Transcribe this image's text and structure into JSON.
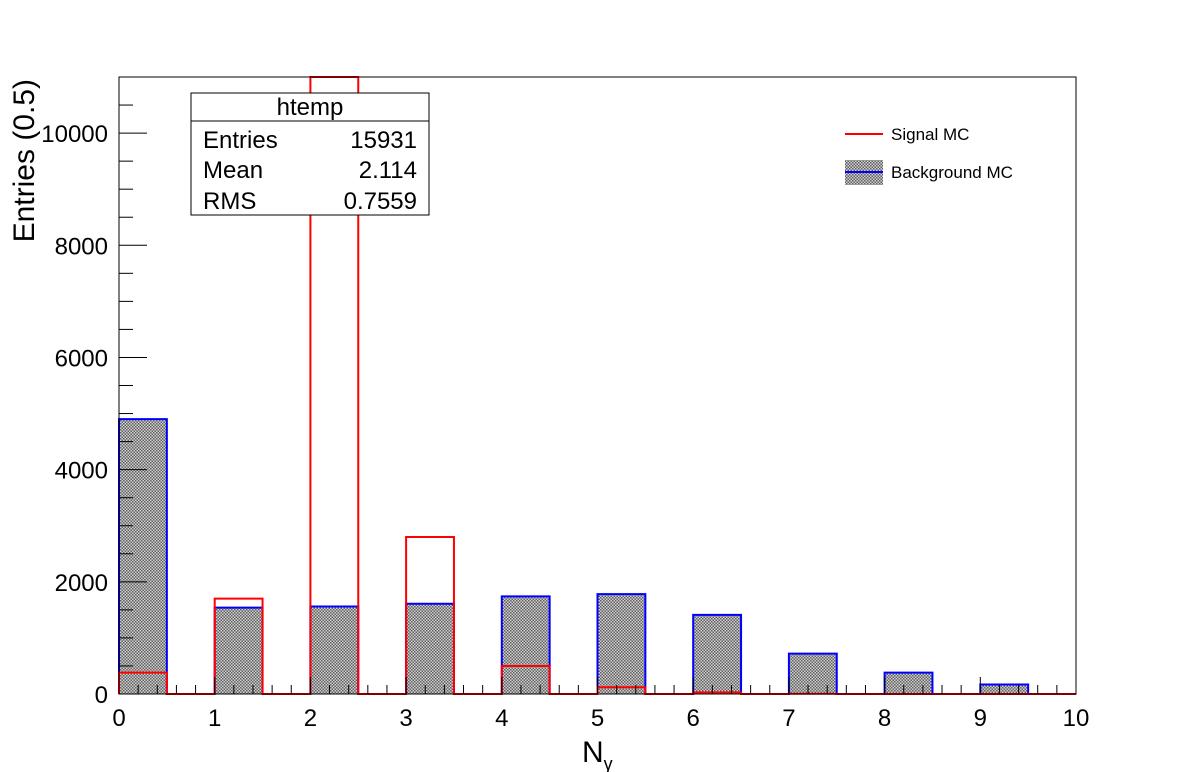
{
  "colors": {
    "signal": "#ff0000",
    "background_line": "#0000ff",
    "background_fill": "#808080",
    "axis": "#000000"
  },
  "stats_box": {
    "title": "htemp",
    "rows": [
      {
        "label": "Entries",
        "value": "15931"
      },
      {
        "label": "Mean",
        "value": "2.114"
      },
      {
        "label": "RMS",
        "value": "0.7559"
      }
    ]
  },
  "chart_data": {
    "type": "bar",
    "xlabel": "N",
    "xlabel_sub": "γ",
    "ylabel": "Entries (0.5)",
    "xlim": [
      0,
      10
    ],
    "ylim": [
      0,
      11000
    ],
    "bin_width": 0.5,
    "x_ticks": [
      0,
      1,
      2,
      3,
      4,
      5,
      6,
      7,
      8,
      9,
      10
    ],
    "y_ticks": [
      0,
      2000,
      4000,
      6000,
      8000,
      10000
    ],
    "bin_edges": [
      0,
      0.5,
      1,
      1.5,
      2,
      2.5,
      3,
      3.5,
      4,
      4.5,
      5,
      5.5,
      6,
      6.5,
      7,
      7.5,
      8,
      8.5,
      9,
      9.5,
      10
    ],
    "legend_position": "top-right",
    "series": [
      {
        "name": "Signal MC",
        "style": "line",
        "values": [
          380,
          0,
          1700,
          0,
          11000,
          0,
          2800,
          0,
          500,
          0,
          120,
          0,
          30,
          0,
          5,
          0,
          0,
          0,
          0,
          0
        ]
      },
      {
        "name": "Background MC",
        "style": "hatched-fill",
        "values": [
          4900,
          0,
          1540,
          0,
          1560,
          0,
          1610,
          0,
          1740,
          0,
          1780,
          0,
          1410,
          0,
          720,
          0,
          380,
          0,
          170,
          0
        ]
      }
    ]
  }
}
